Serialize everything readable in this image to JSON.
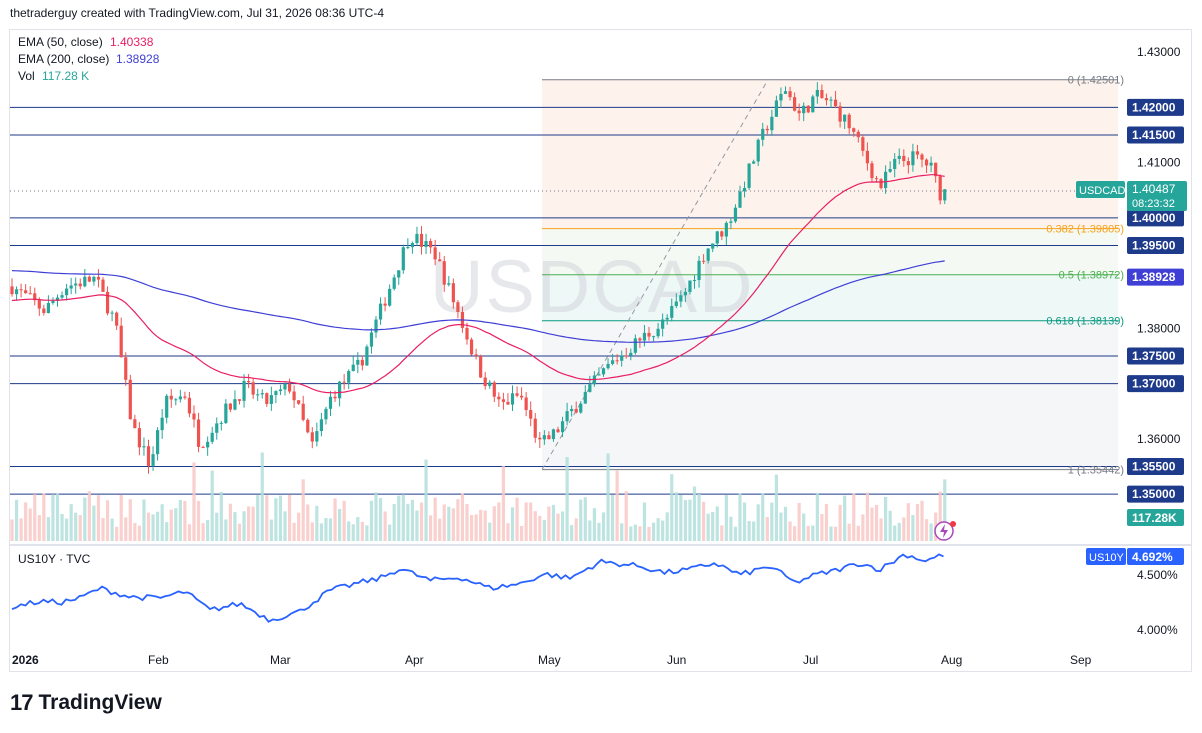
{
  "header": {
    "text": "thetraderguy created with TradingView.com, Jul 31, 2026 08:36 UTC-4"
  },
  "legend": {
    "ema50_label": "EMA (50, close)",
    "ema50_value": "1.40338",
    "ema200_label": "EMA (200, close)",
    "ema200_value": "1.38928",
    "vol_label": "Vol",
    "vol_value": "117.28 K"
  },
  "watermark": "USDCAD",
  "symbol_tag": {
    "label": "USDCAD",
    "price": "1.40487",
    "countdown": "08:23:32"
  },
  "ema50_tag": "1.40338",
  "ema200_tag": "1.38928",
  "volume_tag": "117.28K",
  "price_axis": {
    "ticks": [
      {
        "label": "1.43000",
        "value": 1.43
      },
      {
        "label": "1.41000",
        "value": 1.41
      },
      {
        "label": "1.38000",
        "value": 1.38
      },
      {
        "label": "1.36000",
        "value": 1.36
      }
    ]
  },
  "horizontal_levels": [
    {
      "label": "1.42000",
      "value": 1.42
    },
    {
      "label": "1.41500",
      "value": 1.415
    },
    {
      "label": "1.40000",
      "value": 1.4
    },
    {
      "label": "1.39500",
      "value": 1.395
    },
    {
      "label": "1.37500",
      "value": 1.375
    },
    {
      "label": "1.37000",
      "value": 1.37
    },
    {
      "label": "1.35500",
      "value": 1.355
    },
    {
      "label": "1.35000",
      "value": 1.35
    }
  ],
  "fib_levels": [
    {
      "label": "0 (1.42501)",
      "value": 1.42501,
      "color": "#787b86"
    },
    {
      "label": "0.382 (1.39805)",
      "value": 1.39805,
      "color": "#f7a21b"
    },
    {
      "label": "0.5 (1.38972)",
      "value": 1.38972,
      "color": "#4caf50"
    },
    {
      "label": "0.618 (1.38139)",
      "value": 1.38139,
      "color": "#089981"
    },
    {
      "label": "1 (1.35442)",
      "value": 1.35442,
      "color": "#787b86"
    }
  ],
  "lower_pane": {
    "title": "US10Y · TVC",
    "tag": "US10Y",
    "tag_value": "4.692%",
    "ticks": [
      {
        "label": "4.500%",
        "value": 4.5
      },
      {
        "label": "4.000%",
        "value": 4.0
      }
    ]
  },
  "time_axis": [
    "2026",
    "Feb",
    "Mar",
    "Apr",
    "May",
    "Jun",
    "Jul",
    "Aug",
    "Sep"
  ],
  "footer": {
    "brand": "TradingView"
  },
  "colors": {
    "up": "#26a69a",
    "down": "#ef5350",
    "ema50": "#e91e63",
    "ema200": "#3f3fd6",
    "level": "#1e3a8a",
    "tag_blue": "#2962ff",
    "us10y": "#2962ff"
  },
  "chart_data": {
    "type": "candlestick",
    "title": "USDCAD",
    "symbol": "USDCAD",
    "ylim": [
      1.35,
      1.43
    ],
    "x": [
      "Jan",
      "Feb",
      "Mar",
      "Apr",
      "May",
      "Jun",
      "Jul",
      "Aug",
      "Sep"
    ],
    "approx_monthly_close": [
      1.3876,
      1.3552,
      1.3689,
      1.3971,
      1.3588,
      1.3821,
      1.4187,
      1.4049,
      null
    ],
    "series": [
      {
        "name": "EMA (50, close)",
        "last": 1.40338
      },
      {
        "name": "EMA (200, close)",
        "last": 1.38928
      },
      {
        "name": "Vol",
        "last": "117.28 K"
      },
      {
        "name": "US10Y",
        "last": "4.692%",
        "range": [
          4.0,
          4.7
        ]
      }
    ]
  }
}
